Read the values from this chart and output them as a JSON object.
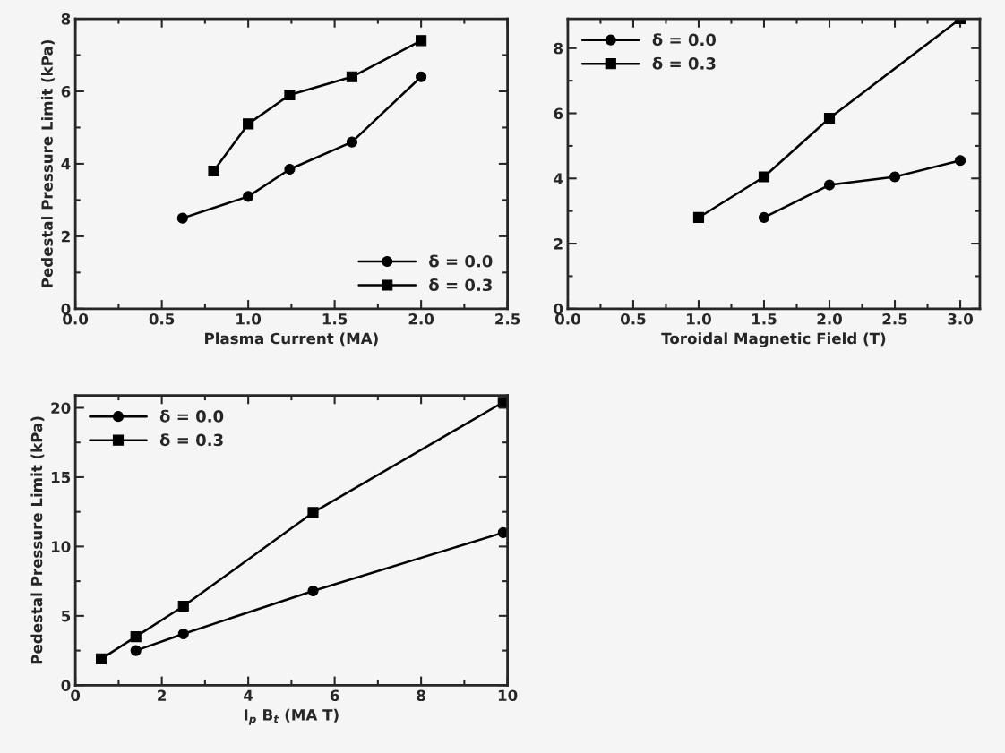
{
  "chart_data": [
    {
      "type": "line",
      "xlabel": "Plasma Current (MA)",
      "ylabel": "Pedestal Pressure Limit (kPa)",
      "xlim": [
        0,
        2.5
      ],
      "ylim": [
        0,
        8
      ],
      "xticks": [
        {
          "value": 0,
          "label": "0.0"
        },
        {
          "value": 0.5,
          "label": "0.5"
        },
        {
          "value": 1,
          "label": "1.0"
        },
        {
          "value": 1.5,
          "label": "1.5"
        },
        {
          "value": 2,
          "label": "2.0"
        },
        {
          "value": 2.5,
          "label": "2.5"
        }
      ],
      "yticks": [
        0,
        2,
        4,
        6,
        8
      ],
      "legend": "bottom right",
      "series": [
        {
          "name": "δ = 0.0",
          "color": "#000000",
          "marker": "circle",
          "x": [
            0.62,
            1.0,
            1.24,
            1.6,
            2.0
          ],
          "values": [
            2.5,
            3.1,
            3.85,
            4.6,
            6.4
          ]
        },
        {
          "name": "δ = 0.3",
          "color": "#000000",
          "marker": "square",
          "x": [
            0.8,
            1.0,
            1.24,
            1.6,
            2.0
          ],
          "values": [
            3.8,
            5.1,
            5.9,
            6.4,
            7.4
          ]
        }
      ]
    },
    {
      "type": "line",
      "xlabel": "Toroidal Magnetic Field (T)",
      "xlim": [
        0,
        3.15
      ],
      "ylim": [
        0,
        8.9
      ],
      "xticks": [
        {
          "value": 0,
          "label": "0.0"
        },
        {
          "value": 0.5,
          "label": "0.5"
        },
        {
          "value": 1,
          "label": "1.0"
        },
        {
          "value": 1.5,
          "label": "1.5"
        },
        {
          "value": 2,
          "label": "2.0"
        },
        {
          "value": 2.5,
          "label": "2.5"
        },
        {
          "value": 3,
          "label": "3.0"
        }
      ],
      "yticks": [
        0,
        2,
        4,
        6,
        8
      ],
      "legend": "top left",
      "series": [
        {
          "name": "δ = 0.0",
          "color": "#000000",
          "marker": "circle",
          "x": [
            1.5,
            2.0,
            2.5,
            3.0
          ],
          "values": [
            2.8,
            3.8,
            4.05,
            4.55
          ]
        },
        {
          "name": "δ = 0.3",
          "color": "#000000",
          "marker": "square",
          "x": [
            1.0,
            1.5,
            2.0,
            3.0
          ],
          "values": [
            2.8,
            4.05,
            5.85,
            8.9
          ]
        }
      ]
    },
    {
      "type": "line",
      "xlabel": "I$_{p}$ B$_{t}$ (MA T)",
      "ylabel": "Pedestal Pressure Limit (kPa)",
      "xlim": [
        0,
        10
      ],
      "ylim": [
        0,
        20.9
      ],
      "xticks": [
        0,
        2,
        4,
        6,
        8,
        10
      ],
      "yticks": [
        0,
        5,
        10,
        15,
        20
      ],
      "legend": "top left",
      "series": [
        {
          "name": "δ = 0.0",
          "color": "#000000",
          "marker": "circle",
          "x": [
            1.4,
            2.5,
            5.5,
            9.9
          ],
          "values": [
            2.5,
            3.7,
            6.8,
            11.0
          ]
        },
        {
          "name": "δ = 0.3",
          "color": "#000000",
          "marker": "square",
          "x": [
            0.6,
            1.4,
            2.5,
            5.5,
            9.9
          ],
          "values": [
            1.9,
            3.5,
            5.7,
            12.45,
            20.4
          ]
        }
      ]
    }
  ]
}
